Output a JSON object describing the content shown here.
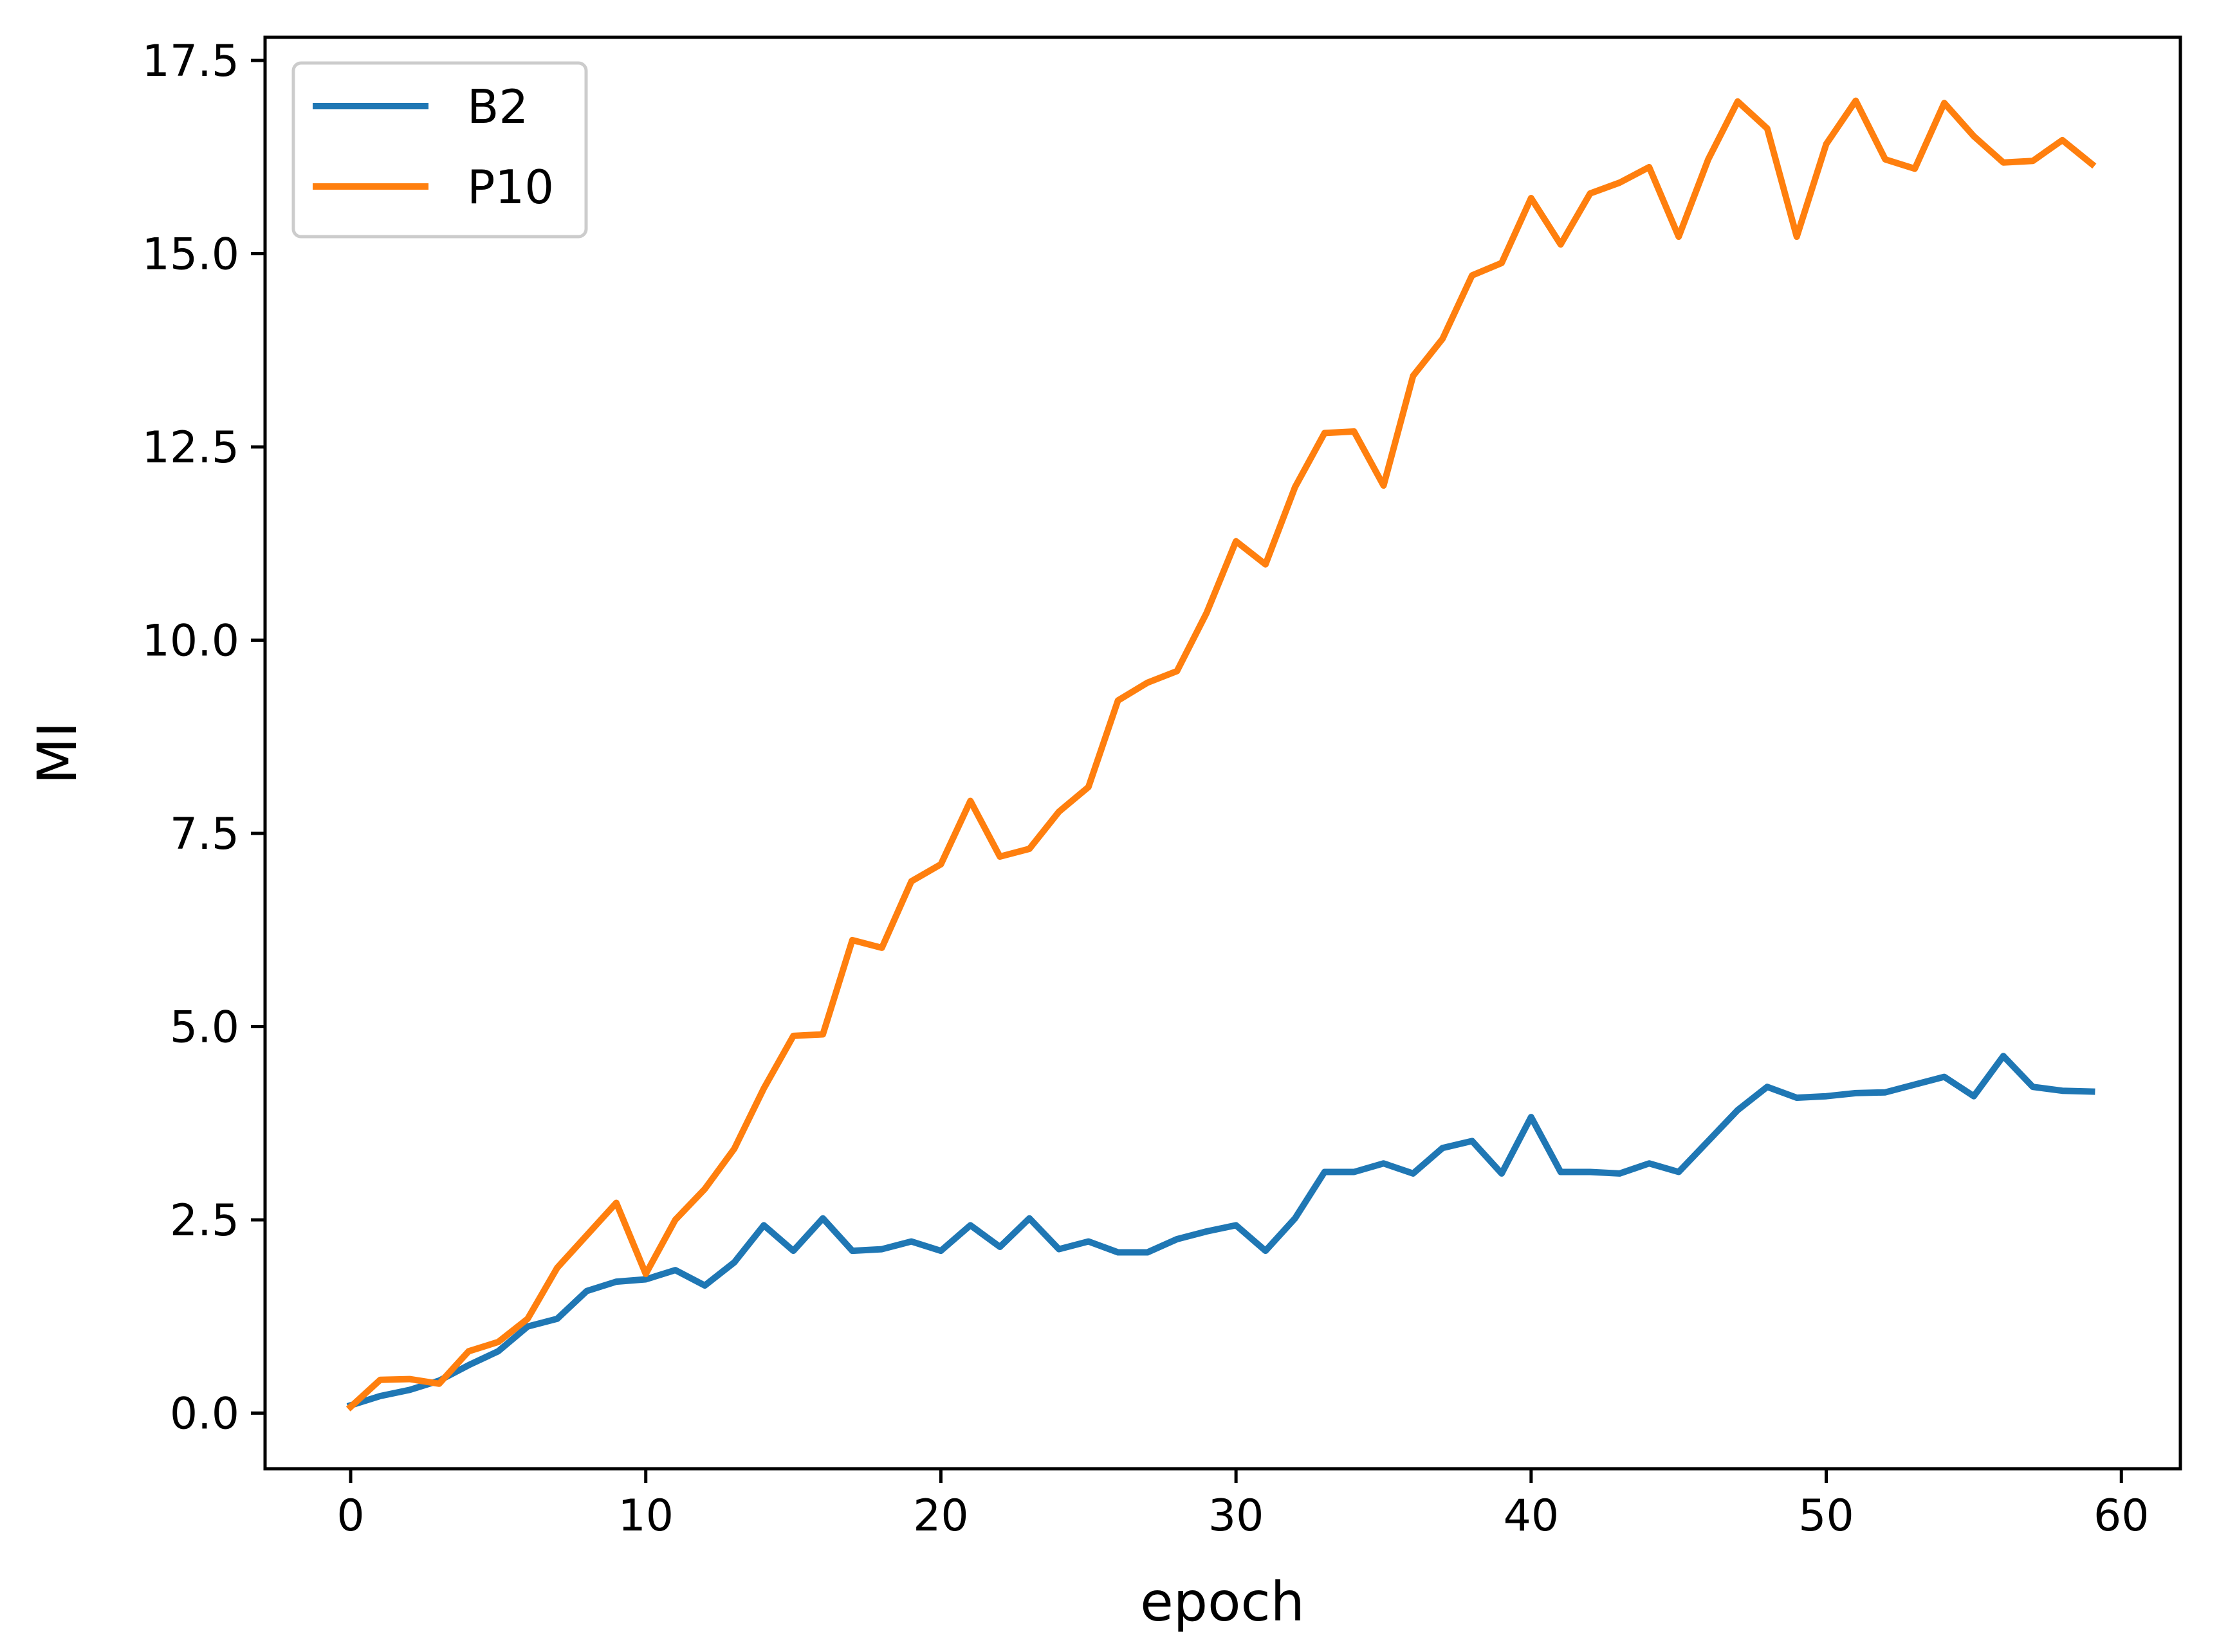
{
  "chart_data": {
    "type": "line",
    "title": "",
    "xlabel": "epoch",
    "ylabel": "MI",
    "xlim": [
      -2.9,
      62.0
    ],
    "ylim": [
      -0.72,
      17.8
    ],
    "xticks": [
      0,
      10,
      20,
      30,
      40,
      50,
      60
    ],
    "xtick_labels": [
      "0",
      "10",
      "20",
      "30",
      "40",
      "50",
      "60"
    ],
    "yticks": [
      0.0,
      2.5,
      5.0,
      7.5,
      10.0,
      12.5,
      15.0,
      17.5
    ],
    "ytick_labels": [
      "0.0",
      "2.5",
      "5.0",
      "7.5",
      "10.0",
      "12.5",
      "15.0",
      "17.5"
    ],
    "grid": false,
    "legend_position": "top-left",
    "x": [
      0,
      1,
      2,
      3,
      4,
      5,
      6,
      7,
      8,
      9,
      10,
      11,
      12,
      13,
      14,
      15,
      16,
      17,
      18,
      19,
      20,
      21,
      22,
      23,
      24,
      25,
      26,
      27,
      28,
      29,
      30,
      31,
      32,
      33,
      34,
      35,
      36,
      37,
      38,
      39,
      40,
      41,
      42,
      43,
      44,
      45,
      46,
      47,
      48,
      49,
      50,
      51,
      52,
      53,
      54,
      55,
      56,
      57,
      58,
      59
    ],
    "series": [
      {
        "name": "B2",
        "color": "#1f77b4",
        "values": [
          0.1,
          0.22,
          0.3,
          0.42,
          0.62,
          0.8,
          1.12,
          1.22,
          1.58,
          1.7,
          1.73,
          1.85,
          1.65,
          1.95,
          2.43,
          2.1,
          2.52,
          2.1,
          2.12,
          2.22,
          2.1,
          2.43,
          2.15,
          2.52,
          2.12,
          2.22,
          2.08,
          2.08,
          2.25,
          2.35,
          2.43,
          2.1,
          2.52,
          3.12,
          3.12,
          3.23,
          3.1,
          3.43,
          3.52,
          3.1,
          3.83,
          3.12,
          3.12,
          3.1,
          3.23,
          3.12,
          3.52,
          3.92,
          4.22,
          4.08,
          4.1,
          4.14,
          4.15,
          4.25,
          4.35,
          4.1,
          4.62,
          4.22,
          4.17,
          4.16
        ]
      },
      {
        "name": "P10",
        "color": "#ff7f0e",
        "values": [
          0.08,
          0.43,
          0.44,
          0.38,
          0.8,
          0.92,
          1.22,
          1.88,
          2.3,
          2.72,
          1.8,
          2.5,
          2.9,
          3.42,
          4.2,
          4.88,
          4.9,
          6.12,
          6.02,
          6.88,
          7.1,
          7.92,
          7.2,
          7.3,
          7.78,
          8.1,
          9.22,
          9.45,
          9.6,
          10.35,
          11.28,
          10.98,
          11.98,
          12.68,
          12.7,
          12.0,
          13.42,
          13.9,
          14.72,
          14.88,
          15.72,
          15.12,
          15.78,
          15.92,
          16.12,
          15.22,
          16.22,
          16.97,
          16.62,
          15.22,
          16.42,
          16.98,
          16.22,
          16.1,
          16.95,
          16.52,
          16.18,
          16.2,
          16.47,
          16.16
        ]
      }
    ]
  }
}
